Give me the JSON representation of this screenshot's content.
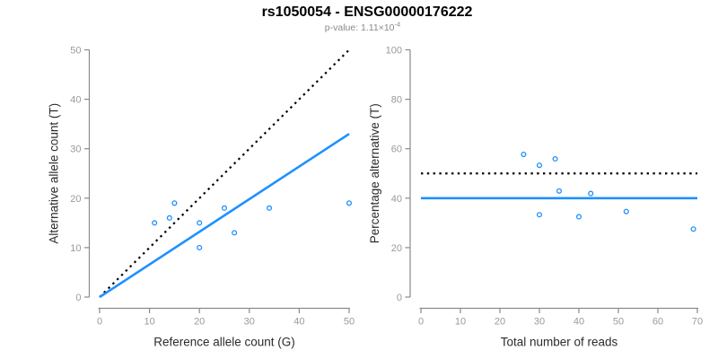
{
  "title": "rs1050054 - ENSG00000176222",
  "subtitle": {
    "base": "p-value: 1.11×10",
    "exponent": "-4"
  },
  "colors": {
    "accent_blue": "#1E90FF",
    "dotted_black": "#000000",
    "axis_gray": "#8a8a8a",
    "tick_label_gray": "#9a9a9a",
    "axis_title_color": "#2b2b2b",
    "title_color": "#000000",
    "subtitle_gray": "#8a8a8a",
    "background": "#ffffff"
  },
  "chart_data": [
    {
      "type": "scatter",
      "title": "",
      "xlabel": "Reference allele count (G)",
      "ylabel": "Alternative allele count (T)",
      "xlim": [
        0,
        50
      ],
      "ylim": [
        0,
        50
      ],
      "xticks": [
        0,
        10,
        20,
        30,
        40,
        50
      ],
      "yticks": [
        0,
        10,
        20,
        30,
        40,
        50
      ],
      "grid": false,
      "legend": null,
      "point_color": "#1E90FF",
      "points": [
        [
          11,
          15
        ],
        [
          14,
          16
        ],
        [
          15,
          19
        ],
        [
          20,
          10
        ],
        [
          20,
          15
        ],
        [
          25,
          18
        ],
        [
          27,
          13
        ],
        [
          34,
          18
        ],
        [
          50,
          19
        ]
      ],
      "lines": [
        {
          "name": "identity-line",
          "style": "dotted",
          "color": "#000000",
          "from": [
            0,
            0
          ],
          "to": [
            50,
            50
          ]
        },
        {
          "name": "regression-line",
          "style": "solid",
          "color": "#1E90FF",
          "from": [
            0,
            0
          ],
          "to": [
            50,
            33
          ]
        }
      ]
    },
    {
      "type": "scatter",
      "title": "",
      "xlabel": "Total number of reads",
      "ylabel": "Percentage alternative (T)",
      "xlim": [
        0,
        70
      ],
      "ylim": [
        0,
        100
      ],
      "xticks": [
        0,
        10,
        20,
        30,
        40,
        50,
        60,
        70
      ],
      "yticks": [
        0,
        20,
        40,
        60,
        80,
        100
      ],
      "grid": false,
      "legend": null,
      "point_color": "#1E90FF",
      "points": [
        [
          26,
          57.7
        ],
        [
          30,
          53.3
        ],
        [
          30,
          33.3
        ],
        [
          34,
          55.9
        ],
        [
          35,
          42.9
        ],
        [
          40,
          32.5
        ],
        [
          43,
          41.9
        ],
        [
          52,
          34.6
        ],
        [
          69,
          27.5
        ]
      ],
      "lines": [
        {
          "name": "expected-percentage-line",
          "style": "dotted",
          "color": "#000000",
          "from": [
            0,
            50
          ],
          "to": [
            70,
            50
          ]
        },
        {
          "name": "mean-percentage-line",
          "style": "solid",
          "color": "#1E90FF",
          "from": [
            0,
            40
          ],
          "to": [
            70,
            40
          ]
        }
      ]
    }
  ]
}
